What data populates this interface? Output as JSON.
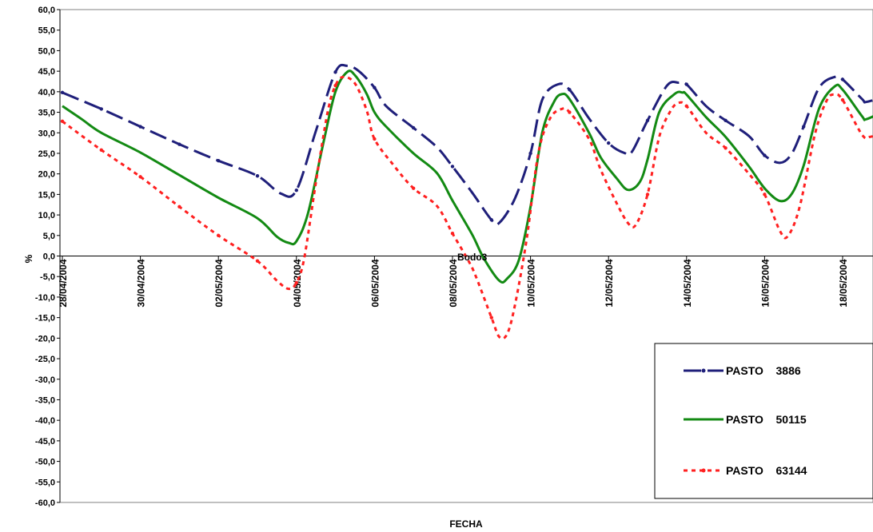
{
  "chart_data": {
    "type": "line",
    "title": "",
    "xlabel": "FECHA",
    "ylabel": "%",
    "ylim": [
      -60,
      60
    ],
    "y_step": 5,
    "y_tick_labels": [
      "60,0",
      "55,0",
      "50,0",
      "45,0",
      "40,0",
      "35,0",
      "30,0",
      "25,0",
      "20,0",
      "15,0",
      "10,0",
      "5,0",
      "0,0",
      "-5,0",
      "-10,0",
      "-15,0",
      "-20,0",
      "-25,0",
      "-30,0",
      "-35,0",
      "-40,0",
      "-45,0",
      "-50,0",
      "-55,0",
      "-60,0"
    ],
    "x_tick_labels": [
      "28/04/2004",
      "30/04/2004",
      "02/05/2004",
      "04/05/2004",
      "06/05/2004",
      "08/05/2004",
      "10/05/2004",
      "12/05/2004",
      "14/05/2004",
      "16/05/2004",
      "18/05/2004"
    ],
    "x_unit": "day index from 28/04/2004",
    "xlim": [
      0,
      21.4
    ],
    "grid": false,
    "legend_position": "bottom-right",
    "stray_label": "Bodo3",
    "series": [
      {
        "name": "PASTO    3886",
        "color": "#1F1F7A",
        "style": "dash",
        "points": [
          [
            0,
            39.8
          ],
          [
            1,
            35.8
          ],
          [
            2,
            31.5
          ],
          [
            3,
            27.2
          ],
          [
            4,
            23.2
          ],
          [
            5,
            19.5
          ],
          [
            5.6,
            15.2
          ],
          [
            6,
            16.0
          ],
          [
            6.5,
            30.5
          ],
          [
            7,
            44.8
          ],
          [
            7.3,
            46.3
          ],
          [
            7.6,
            45.0
          ],
          [
            8,
            41.0
          ],
          [
            8.3,
            36.5
          ],
          [
            9,
            31.2
          ],
          [
            9.6,
            26.5
          ],
          [
            10,
            21.8
          ],
          [
            10.5,
            15.5
          ],
          [
            11,
            8.8
          ],
          [
            11.2,
            8.1
          ],
          [
            11.6,
            14.0
          ],
          [
            12,
            25.0
          ],
          [
            12.3,
            38.0
          ],
          [
            12.7,
            41.8
          ],
          [
            13,
            40.5
          ],
          [
            13.5,
            33.5
          ],
          [
            14,
            27.5
          ],
          [
            14.4,
            25.1
          ],
          [
            14.6,
            25.4
          ],
          [
            15,
            33.0
          ],
          [
            15.5,
            41.5
          ],
          [
            15.8,
            42.2
          ],
          [
            16,
            41.8
          ],
          [
            16.5,
            36.5
          ],
          [
            17,
            33.0
          ],
          [
            17.6,
            29.2
          ],
          [
            18,
            24.5
          ],
          [
            18.4,
            22.7
          ],
          [
            18.7,
            25.0
          ],
          [
            19,
            31.5
          ],
          [
            19.4,
            41.0
          ],
          [
            19.8,
            43.6
          ],
          [
            20,
            43.0
          ],
          [
            20.5,
            38.2
          ],
          [
            20.6,
            37.5
          ],
          [
            21,
            39.0
          ],
          [
            21.4,
            43.3
          ]
        ]
      },
      {
        "name": "PASTO    50115",
        "color": "#138A13",
        "style": "solid",
        "points": [
          [
            0,
            36.5
          ],
          [
            0.5,
            33.3
          ],
          [
            1,
            30.0
          ],
          [
            2,
            25.2
          ],
          [
            3,
            19.7
          ],
          [
            4,
            14.2
          ],
          [
            5,
            9.2
          ],
          [
            5.5,
            4.7
          ],
          [
            5.8,
            3.2
          ],
          [
            6,
            3.6
          ],
          [
            6.3,
            10.5
          ],
          [
            6.7,
            28.0
          ],
          [
            7,
            40.0
          ],
          [
            7.3,
            44.8
          ],
          [
            7.5,
            44.0
          ],
          [
            7.8,
            39.5
          ],
          [
            8,
            35.0
          ],
          [
            8.3,
            31.5
          ],
          [
            9,
            25.0
          ],
          [
            9.6,
            20.2
          ],
          [
            10,
            13.5
          ],
          [
            10.5,
            5.3
          ],
          [
            10.8,
            -0.5
          ],
          [
            11.2,
            -6.0
          ],
          [
            11.4,
            -5.5
          ],
          [
            11.7,
            -1.0
          ],
          [
            12,
            12.0
          ],
          [
            12.3,
            30.0
          ],
          [
            12.6,
            37.5
          ],
          [
            12.8,
            39.4
          ],
          [
            13,
            38.2
          ],
          [
            13.5,
            30.0
          ],
          [
            13.8,
            24.0
          ],
          [
            14.2,
            19.0
          ],
          [
            14.5,
            16.1
          ],
          [
            14.8,
            18.0
          ],
          [
            15,
            23.5
          ],
          [
            15.3,
            35.0
          ],
          [
            15.7,
            39.5
          ],
          [
            15.9,
            39.8
          ],
          [
            16,
            39.3
          ],
          [
            16.5,
            33.8
          ],
          [
            17,
            29.0
          ],
          [
            17.6,
            21.8
          ],
          [
            18,
            16.5
          ],
          [
            18.4,
            13.4
          ],
          [
            18.7,
            15.2
          ],
          [
            19,
            22.0
          ],
          [
            19.4,
            36.0
          ],
          [
            19.8,
            41.3
          ],
          [
            20,
            40.5
          ],
          [
            20.5,
            34.0
          ],
          [
            20.6,
            33.3
          ],
          [
            21,
            35.0
          ],
          [
            21.4,
            37.1
          ]
        ]
      },
      {
        "name": "PASTO    63144",
        "color": "#FF2020",
        "style": "dot",
        "points": [
          [
            0,
            32.8
          ],
          [
            1,
            25.8
          ],
          [
            2,
            19.3
          ],
          [
            3,
            12.0
          ],
          [
            4,
            5.0
          ],
          [
            5,
            -1.2
          ],
          [
            5.5,
            -6.0
          ],
          [
            5.8,
            -8.0
          ],
          [
            6,
            -6.5
          ],
          [
            6.2,
            -0.5
          ],
          [
            6.5,
            18.0
          ],
          [
            6.8,
            35.0
          ],
          [
            7,
            41.5
          ],
          [
            7.2,
            43.6
          ],
          [
            7.5,
            42.0
          ],
          [
            7.8,
            35.5
          ],
          [
            8,
            28.5
          ],
          [
            8.5,
            22.0
          ],
          [
            9,
            16.5
          ],
          [
            9.6,
            12.2
          ],
          [
            10,
            5.5
          ],
          [
            10.4,
            -1.0
          ],
          [
            10.6,
            -5.0
          ],
          [
            11,
            -15.0
          ],
          [
            11.2,
            -19.7
          ],
          [
            11.4,
            -19.0
          ],
          [
            11.6,
            -12.0
          ],
          [
            11.9,
            4.0
          ],
          [
            12.2,
            25.0
          ],
          [
            12.5,
            33.5
          ],
          [
            12.8,
            35.8
          ],
          [
            13,
            35.0
          ],
          [
            13.5,
            28.5
          ],
          [
            13.8,
            21.0
          ],
          [
            14.2,
            13.0
          ],
          [
            14.5,
            8.0
          ],
          [
            14.7,
            7.6
          ],
          [
            15,
            15.0
          ],
          [
            15.3,
            29.0
          ],
          [
            15.6,
            35.5
          ],
          [
            15.8,
            37.3
          ],
          [
            16,
            36.5
          ],
          [
            16.5,
            30.0
          ],
          [
            17,
            26.3
          ],
          [
            17.6,
            20.0
          ],
          [
            18,
            15.0
          ],
          [
            18.4,
            6.0
          ],
          [
            18.6,
            4.9
          ],
          [
            18.9,
            12.0
          ],
          [
            19.3,
            30.0
          ],
          [
            19.6,
            38.0
          ],
          [
            19.8,
            39.3
          ],
          [
            20,
            38.0
          ],
          [
            20.5,
            29.5
          ],
          [
            20.7,
            29.0
          ],
          [
            21,
            30.0
          ],
          [
            21.4,
            31.2
          ]
        ]
      }
    ]
  }
}
